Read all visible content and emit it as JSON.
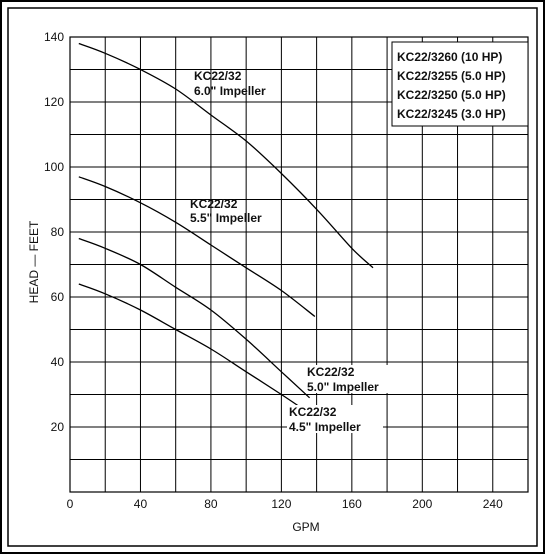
{
  "chart_data": {
    "type": "line",
    "xlabel": "GPM",
    "ylabel": "HEAD — FEET",
    "xlim": [
      0,
      260
    ],
    "ylim": [
      0,
      140
    ],
    "x_ticks": [
      0,
      40,
      80,
      120,
      160,
      200,
      240
    ],
    "y_ticks": [
      20,
      40,
      60,
      80,
      100,
      120,
      140
    ],
    "x_tick_labels": [
      "0",
      "40",
      "80",
      "120",
      "160",
      "200",
      "240"
    ],
    "y_tick_labels": [
      "20",
      "40",
      "60",
      "80",
      "100",
      "120",
      "140"
    ],
    "grid": true,
    "legend": {
      "placement": "top-right",
      "entries": [
        "KC22/3260 (10 HP)",
        "KC22/3255 (5.0 HP)",
        "KC22/3250 (5.0 HP)",
        "KC22/3245 (3.0 HP)"
      ]
    },
    "series": [
      {
        "label_line1": "KC22/32",
        "label_line2": "6.0\" Impeller",
        "x": [
          5,
          20,
          40,
          60,
          80,
          100,
          120,
          140,
          160,
          172
        ],
        "y": [
          138,
          135,
          130,
          124,
          116,
          108,
          98,
          87,
          75,
          69
        ]
      },
      {
        "label_line1": "KC22/32",
        "label_line2": "5.5\" Impeller",
        "x": [
          5,
          20,
          40,
          60,
          80,
          100,
          120,
          139
        ],
        "y": [
          97,
          94,
          89,
          83,
          76,
          69,
          62,
          54
        ]
      },
      {
        "label_line1": "KC22/32",
        "label_line2": "5.0\" Impeller",
        "x": [
          5,
          20,
          40,
          60,
          80,
          100,
          120,
          136
        ],
        "y": [
          78,
          75,
          70,
          63,
          56,
          47,
          37,
          29
        ]
      },
      {
        "label_line1": "KC22/32",
        "label_line2": "4.5\" Impeller",
        "x": [
          5,
          20,
          40,
          60,
          80,
          100,
          120,
          131
        ],
        "y": [
          64,
          61,
          56,
          50,
          44,
          37,
          30,
          26
        ]
      }
    ]
  }
}
